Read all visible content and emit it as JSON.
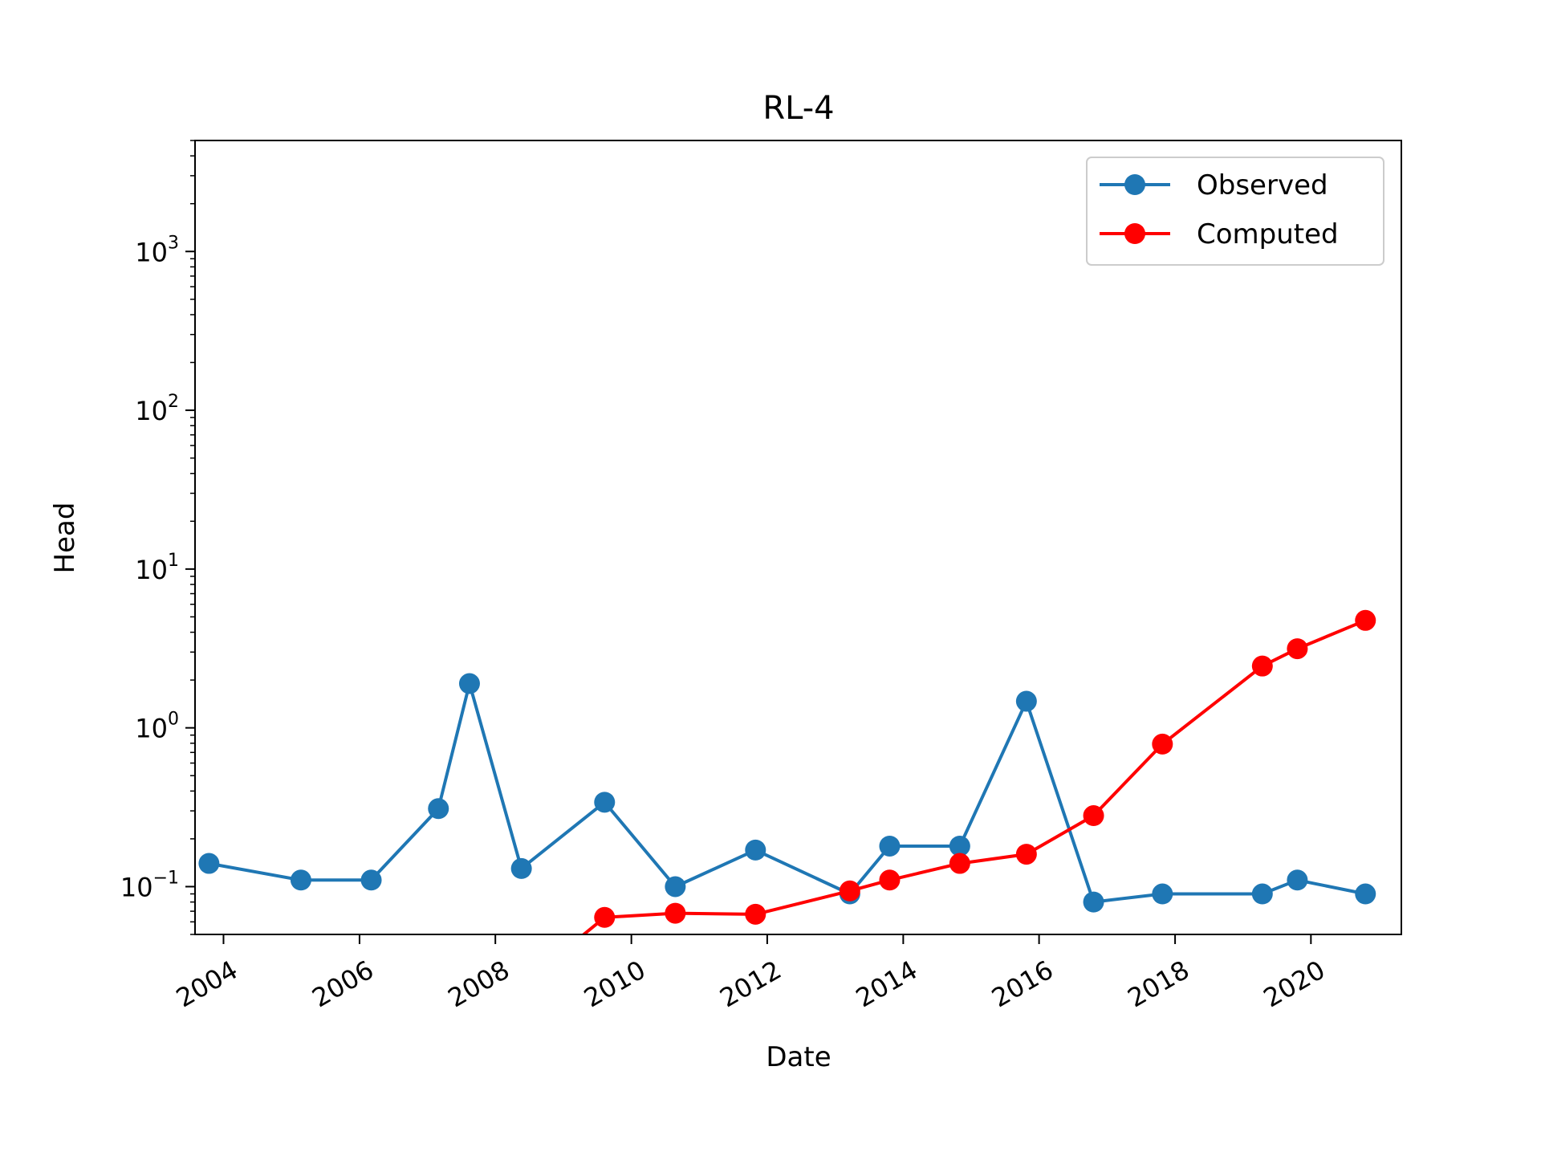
{
  "chart_data": {
    "type": "line",
    "title": "RL-4",
    "xlabel": "Date",
    "ylabel": "Head",
    "yscale": "log",
    "ylim": [
      0.05,
      5000
    ],
    "xlim": [
      "2003-08-01",
      "2021-05-01"
    ],
    "x_ticks": [
      "2004",
      "2006",
      "2008",
      "2010",
      "2012",
      "2014",
      "2016",
      "2018",
      "2020"
    ],
    "y_ticks": [
      {
        "value": 0.1,
        "base": "10",
        "exp": "−1"
      },
      {
        "value": 1,
        "base": "10",
        "exp": "0"
      },
      {
        "value": 10,
        "base": "10",
        "exp": "1"
      },
      {
        "value": 100,
        "base": "10",
        "exp": "2"
      },
      {
        "value": 1000,
        "base": "10",
        "exp": "3"
      }
    ],
    "grid": false,
    "legend_position": "top-right",
    "series": [
      {
        "name": "Observed",
        "color": "#1f77b4",
        "marker": "circle",
        "points": [
          {
            "x": "2003-10-15",
            "y": 0.14
          },
          {
            "x": "2005-02-20",
            "y": 0.11
          },
          {
            "x": "2006-03-05",
            "y": 0.11
          },
          {
            "x": "2007-03-01",
            "y": 0.31
          },
          {
            "x": "2007-08-15",
            "y": 1.9
          },
          {
            "x": "2008-05-20",
            "y": 0.13
          },
          {
            "x": "2009-08-10",
            "y": 0.34
          },
          {
            "x": "2010-08-25",
            "y": 0.1
          },
          {
            "x": "2011-10-30",
            "y": 0.17
          },
          {
            "x": "2013-03-20",
            "y": 0.09
          },
          {
            "x": "2013-10-20",
            "y": 0.18
          },
          {
            "x": "2014-11-01",
            "y": 0.18
          },
          {
            "x": "2015-10-25",
            "y": 1.47
          },
          {
            "x": "2016-10-20",
            "y": 0.08
          },
          {
            "x": "2017-10-25",
            "y": 0.09
          },
          {
            "x": "2019-04-15",
            "y": 0.09
          },
          {
            "x": "2019-10-20",
            "y": 0.11
          },
          {
            "x": "2020-10-20",
            "y": 0.09
          }
        ]
      },
      {
        "name": "Computed",
        "color": "#ff0000",
        "marker": "circle",
        "points": [
          {
            "x": "2008-09-01",
            "y": 0.03
          },
          {
            "x": "2009-08-10",
            "y": 0.064
          },
          {
            "x": "2010-08-25",
            "y": 0.068
          },
          {
            "x": "2011-10-30",
            "y": 0.067
          },
          {
            "x": "2013-03-20",
            "y": 0.094
          },
          {
            "x": "2013-10-20",
            "y": 0.11
          },
          {
            "x": "2014-11-01",
            "y": 0.14
          },
          {
            "x": "2015-10-25",
            "y": 0.16
          },
          {
            "x": "2016-10-20",
            "y": 0.28
          },
          {
            "x": "2017-10-25",
            "y": 0.79
          },
          {
            "x": "2019-04-15",
            "y": 2.45
          },
          {
            "x": "2019-10-20",
            "y": 3.15
          },
          {
            "x": "2020-10-20",
            "y": 4.75
          }
        ]
      }
    ]
  }
}
